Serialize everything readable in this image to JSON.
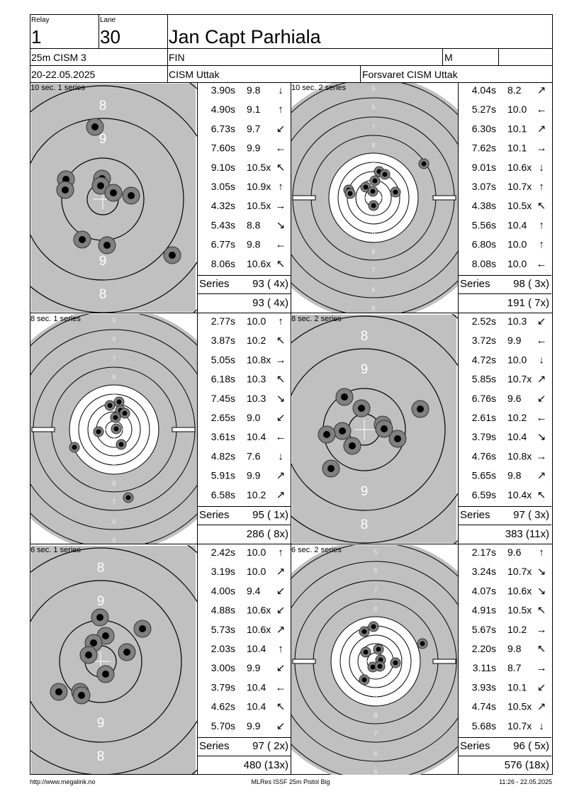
{
  "header": {
    "relay_label": "Relay",
    "relay": "1",
    "lane_label": "Lane",
    "lane": "30",
    "name": "Jan Capt Parhiala",
    "event": "25m CISM 3",
    "nation": "FIN",
    "gender": "M",
    "dates": "20-22.05.2025",
    "club": "CISM Uttak",
    "club2": "Forsvaret CISM Uttak"
  },
  "panels": [
    {
      "title": "10 sec. 1 series",
      "target": "rapid",
      "ring_labels_top": [
        "8",
        "9"
      ],
      "ring_labels_bottom": [
        "9",
        "8"
      ],
      "shots": [
        {
          "time": "3.90s",
          "score": "9.8",
          "dir": "↓"
        },
        {
          "time": "4.90s",
          "score": "9.1",
          "dir": "↑"
        },
        {
          "time": "6.73s",
          "score": "9.7",
          "dir": "↙"
        },
        {
          "time": "7.60s",
          "score": "9.9",
          "dir": "←"
        },
        {
          "time": "9.10s",
          "score": "10.5x",
          "dir": "↖"
        },
        {
          "time": "3.05s",
          "score": "10.9x",
          "dir": "↑"
        },
        {
          "time": "4.32s",
          "score": "10.5x",
          "dir": "→"
        },
        {
          "time": "5.43s",
          "score": "8.8",
          "dir": "↘"
        },
        {
          "time": "6.77s",
          "score": "9.8",
          "dir": "←"
        },
        {
          "time": "8.06s",
          "score": "10.6x",
          "dir": "↖"
        }
      ],
      "series_label": "Series",
      "series_total": "93 ( 4x)",
      "cumulative": "93 ( 4x)"
    },
    {
      "title": "10 sec. 2 series",
      "target": "precision",
      "ring_labels_top": [
        "5",
        "6",
        "7",
        "8",
        "9"
      ],
      "ring_labels_bottom": [
        "9",
        "8",
        "7",
        "6",
        "5"
      ],
      "shots": [
        {
          "time": "4.04s",
          "score": "8.2",
          "dir": "↗"
        },
        {
          "time": "5.27s",
          "score": "10.0",
          "dir": "←"
        },
        {
          "time": "6.30s",
          "score": "10.1",
          "dir": "↗"
        },
        {
          "time": "7.62s",
          "score": "10.1",
          "dir": "→"
        },
        {
          "time": "9.01s",
          "score": "10.6x",
          "dir": "↓"
        },
        {
          "time": "3.07s",
          "score": "10.7x",
          "dir": "↑"
        },
        {
          "time": "4.38s",
          "score": "10.5x",
          "dir": "↖"
        },
        {
          "time": "5.56s",
          "score": "10.4",
          "dir": "↑"
        },
        {
          "time": "6.80s",
          "score": "10.0",
          "dir": "↑"
        },
        {
          "time": "8.08s",
          "score": "10.0",
          "dir": "←"
        }
      ],
      "series_label": "Series",
      "series_total": "98 ( 3x)",
      "cumulative": "191 ( 7x)"
    },
    {
      "title": "8 sec. 1 series",
      "target": "precision",
      "ring_labels_top": [
        "5",
        "6",
        "7",
        "8",
        "9"
      ],
      "ring_labels_bottom": [
        "9",
        "8",
        "7",
        "6",
        "5"
      ],
      "shots": [
        {
          "time": "2.77s",
          "score": "10.0",
          "dir": "↑"
        },
        {
          "time": "3.87s",
          "score": "10.2",
          "dir": "↖"
        },
        {
          "time": "5.05s",
          "score": "10.8x",
          "dir": "→"
        },
        {
          "time": "6.18s",
          "score": "10.3",
          "dir": "↖"
        },
        {
          "time": "7.45s",
          "score": "10.3",
          "dir": "↘"
        },
        {
          "time": "2.65s",
          "score": "9.0",
          "dir": "↙"
        },
        {
          "time": "3.61s",
          "score": "10.4",
          "dir": "←"
        },
        {
          "time": "4.82s",
          "score": "7.6",
          "dir": "↓"
        },
        {
          "time": "5.91s",
          "score": "9.9",
          "dir": "↗"
        },
        {
          "time": "6.58s",
          "score": "10.2",
          "dir": "↗"
        }
      ],
      "series_label": "Series",
      "series_total": "95 ( 1x)",
      "cumulative": "286 ( 8x)"
    },
    {
      "title": "8 sec. 2 series",
      "target": "rapid",
      "ring_labels_top": [
        "8",
        "9"
      ],
      "ring_labels_bottom": [
        "9",
        "8"
      ],
      "shots": [
        {
          "time": "2.52s",
          "score": "10.3",
          "dir": "↙"
        },
        {
          "time": "3.72s",
          "score": "9.9",
          "dir": "←"
        },
        {
          "time": "4.72s",
          "score": "10.0",
          "dir": "↓"
        },
        {
          "time": "5.85s",
          "score": "10.7x",
          "dir": "↗"
        },
        {
          "time": "6.76s",
          "score": "9.6",
          "dir": "↙"
        },
        {
          "time": "2.61s",
          "score": "10.2",
          "dir": "←"
        },
        {
          "time": "3.79s",
          "score": "10.4",
          "dir": "↘"
        },
        {
          "time": "4.76s",
          "score": "10.8x",
          "dir": "→"
        },
        {
          "time": "5.65s",
          "score": "9.8",
          "dir": "↗"
        },
        {
          "time": "6.59s",
          "score": "10.4x",
          "dir": "↖"
        }
      ],
      "series_label": "Series",
      "series_total": "97 ( 3x)",
      "cumulative": "383 (11x)"
    },
    {
      "title": "6 sec. 1 series",
      "target": "rapid",
      "ring_labels_top": [
        "8",
        "9"
      ],
      "ring_labels_bottom": [
        "9",
        "8"
      ],
      "shots": [
        {
          "time": "2.42s",
          "score": "10.0",
          "dir": "↑"
        },
        {
          "time": "3.19s",
          "score": "10.0",
          "dir": "↗"
        },
        {
          "time": "4.00s",
          "score": "9.4",
          "dir": "↙"
        },
        {
          "time": "4.88s",
          "score": "10.6x",
          "dir": "↙"
        },
        {
          "time": "5.73s",
          "score": "10.6x",
          "dir": "↗"
        },
        {
          "time": "2.03s",
          "score": "10.4",
          "dir": "↑"
        },
        {
          "time": "3.00s",
          "score": "9.9",
          "dir": "↙"
        },
        {
          "time": "3.79s",
          "score": "10.4",
          "dir": "←"
        },
        {
          "time": "4.62s",
          "score": "10.4",
          "dir": "↖"
        },
        {
          "time": "5.70s",
          "score": "9.9",
          "dir": "↙"
        }
      ],
      "series_label": "Series",
      "series_total": "97 ( 2x)",
      "cumulative": "480 (13x)"
    },
    {
      "title": "6 sec. 2 series",
      "target": "precision",
      "ring_labels_top": [
        "5",
        "6",
        "7",
        "8",
        "9"
      ],
      "ring_labels_bottom": [
        "9",
        "8",
        "7",
        "6",
        "5"
      ],
      "shots": [
        {
          "time": "2.17s",
          "score": "9.6",
          "dir": "↑"
        },
        {
          "time": "3.24s",
          "score": "10.7x",
          "dir": "↘"
        },
        {
          "time": "4.07s",
          "score": "10.6x",
          "dir": "↘"
        },
        {
          "time": "4.91s",
          "score": "10.5x",
          "dir": "↖"
        },
        {
          "time": "5.67s",
          "score": "10.2",
          "dir": "→"
        },
        {
          "time": "2.20s",
          "score": "9.8",
          "dir": "↖"
        },
        {
          "time": "3.11s",
          "score": "8.7",
          "dir": "→"
        },
        {
          "time": "3.93s",
          "score": "10.1",
          "dir": "↙"
        },
        {
          "time": "4.74s",
          "score": "10.5x",
          "dir": "↗"
        },
        {
          "time": "5.68s",
          "score": "10.7x",
          "dir": "↓"
        }
      ],
      "series_label": "Series",
      "series_total": "96 ( 5x)",
      "cumulative": "576 (18x)"
    }
  ],
  "footer": {
    "url": "http://www.megalink.no",
    "software": "MLRes ISSF 25m Pistol Big",
    "timestamp": "11:26 - 22.05.2025"
  }
}
